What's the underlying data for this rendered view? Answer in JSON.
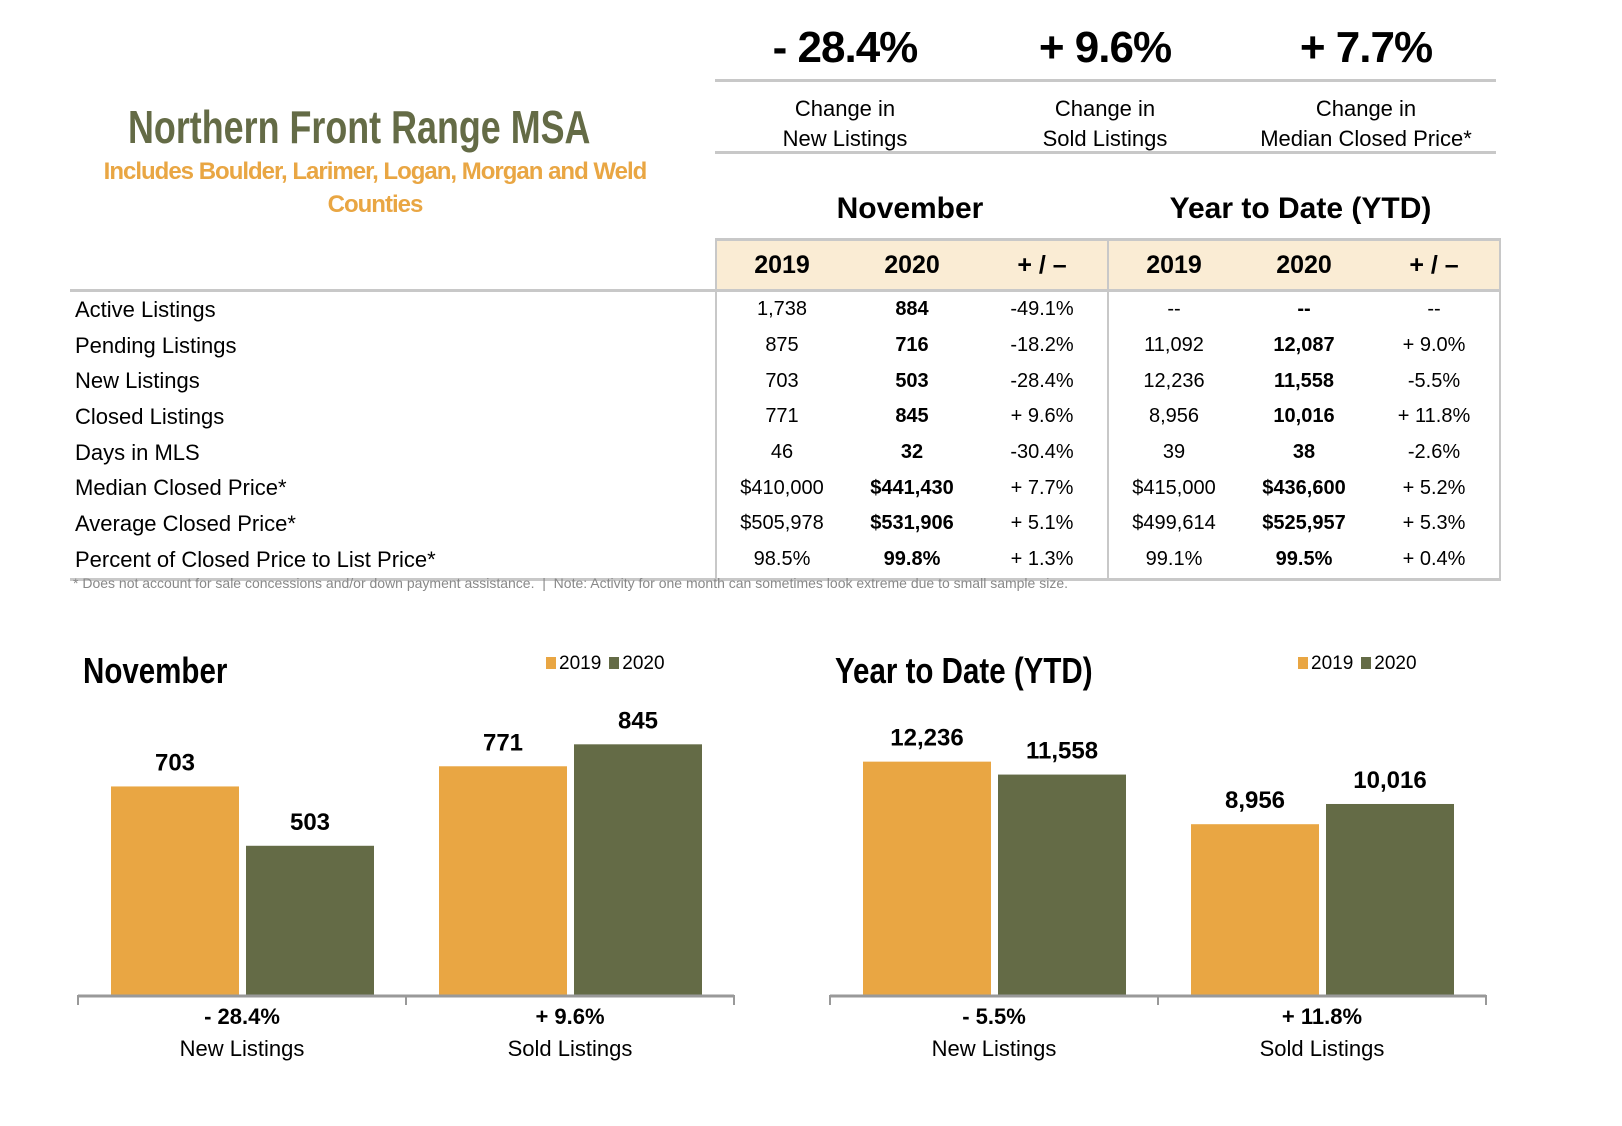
{
  "header": {
    "title": "Northern Front Range MSA",
    "subtitle": "Includes Boulder, Larimer, Logan, Morgan and Weld Counties"
  },
  "kpis": [
    {
      "value": "- 28.4%",
      "line1": "Change in",
      "line2": "New Listings"
    },
    {
      "value": "+ 9.6%",
      "line1": "Change in",
      "line2": "Sold Listings"
    },
    {
      "value": "+ 7.7%",
      "line1": "Change in",
      "line2": "Median Closed Price*"
    }
  ],
  "table": {
    "section_month": "November",
    "section_ytd": "Year to Date (YTD)",
    "columns": [
      "2019",
      "2020",
      "+ / –",
      "2019",
      "2020",
      "+ / –"
    ],
    "rows": [
      {
        "label": "Active Listings",
        "values": [
          "1,738",
          "884",
          "-49.1%",
          "--",
          "--",
          "--"
        ]
      },
      {
        "label": "Pending Listings",
        "values": [
          "875",
          "716",
          "-18.2%",
          "11,092",
          "12,087",
          "+ 9.0%"
        ]
      },
      {
        "label": "New Listings",
        "values": [
          "703",
          "503",
          "-28.4%",
          "12,236",
          "11,558",
          "-5.5%"
        ]
      },
      {
        "label": "Closed Listings",
        "values": [
          "771",
          "845",
          "+ 9.6%",
          "8,956",
          "10,016",
          "+ 11.8%"
        ]
      },
      {
        "label": "Days in MLS",
        "values": [
          "46",
          "32",
          "-30.4%",
          "39",
          "38",
          "-2.6%"
        ]
      },
      {
        "label": "Median Closed Price*",
        "values": [
          "$410,000",
          "$441,430",
          "+ 7.7%",
          "$415,000",
          "$436,600",
          "+ 5.2%"
        ]
      },
      {
        "label": "Average Closed Price*",
        "values": [
          "$505,978",
          "$531,906",
          "+ 5.1%",
          "$499,614",
          "$525,957",
          "+ 5.3%"
        ]
      },
      {
        "label": "Percent of Closed Price to List Price*",
        "values": [
          "98.5%",
          "99.8%",
          "+ 1.3%",
          "99.1%",
          "99.5%",
          "+ 0.4%"
        ]
      }
    ],
    "note": "* Does not account for sale concessions and/or down payment assistance.  |  Note: Activity for one month can sometimes look extreme due to small sample size."
  },
  "colors": {
    "2019": "#e9a643",
    "2020": "#646b46",
    "title": "#646b46",
    "subtitle": "#e9a643",
    "header_bg": "#faecd4"
  },
  "chart_data": [
    {
      "type": "bar",
      "title": "November",
      "categories": [
        "New Listings",
        "Sold Listings"
      ],
      "category_changes": [
        "- 28.4%",
        "+ 9.6%"
      ],
      "series": [
        {
          "name": "2019",
          "values": [
            703,
            771
          ],
          "labels": [
            "703",
            "771"
          ]
        },
        {
          "name": "2020",
          "values": [
            503,
            845
          ],
          "labels": [
            "503",
            "845"
          ]
        }
      ],
      "ylim": [
        0,
        900
      ],
      "grid": false,
      "legend": "top-right"
    },
    {
      "type": "bar",
      "title": "Year to Date (YTD)",
      "categories": [
        "New Listings",
        "Sold Listings"
      ],
      "category_changes": [
        "- 5.5%",
        "+ 11.8%"
      ],
      "series": [
        {
          "name": "2019",
          "values": [
            12236,
            8956
          ],
          "labels": [
            "12,236",
            "8,956"
          ]
        },
        {
          "name": "2020",
          "values": [
            11558,
            10016
          ],
          "labels": [
            "11,558",
            "10,016"
          ]
        }
      ],
      "ylim": [
        0,
        14000
      ],
      "grid": false,
      "legend": "top-right"
    }
  ]
}
